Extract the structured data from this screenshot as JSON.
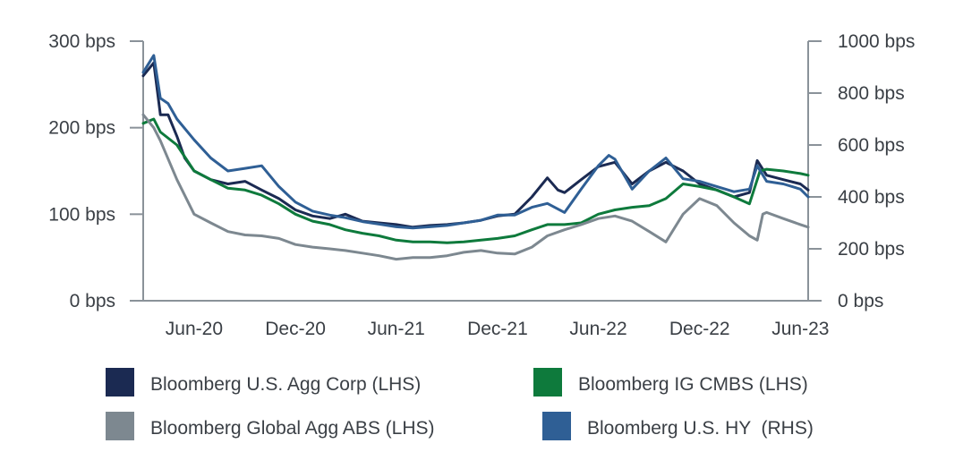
{
  "chart_data": {
    "type": "line",
    "title": "",
    "xlabel": "",
    "ylabel_left": "",
    "ylabel_right": "",
    "x_domain": [
      "2020-03-01",
      "2023-06-15"
    ],
    "x_ticks": [
      {
        "date": "2020-06-01",
        "label": "Jun-20"
      },
      {
        "date": "2020-12-01",
        "label": "Dec-20"
      },
      {
        "date": "2021-06-01",
        "label": "Jun-21"
      },
      {
        "date": "2021-12-01",
        "label": "Dec-21"
      },
      {
        "date": "2022-06-01",
        "label": "Jun-22"
      },
      {
        "date": "2022-12-01",
        "label": "Dec-22"
      },
      {
        "date": "2023-06-01",
        "label": "Jun-23"
      }
    ],
    "y_left": {
      "range": [
        0,
        300
      ],
      "ticks": [
        0,
        100,
        200,
        300
      ],
      "tick_labels": [
        "0 bps",
        "100 bps",
        "200 bps",
        "300 bps"
      ]
    },
    "y_right": {
      "range": [
        0,
        1000
      ],
      "ticks": [
        0,
        200,
        400,
        600,
        800,
        1000
      ],
      "tick_labels": [
        "0 bps",
        "200 bps",
        "400 bps",
        "600 bps",
        "800 bps",
        "1000 bps"
      ]
    },
    "grid": false,
    "legend_position": "bottom",
    "series": [
      {
        "name": "Bloomberg U.S. Agg Corp (LHS)",
        "axis": "left",
        "color": "#1b2a52",
        "points": [
          [
            "2020-03-01",
            260
          ],
          [
            "2020-03-20",
            275
          ],
          [
            "2020-04-01",
            215
          ],
          [
            "2020-04-15",
            215
          ],
          [
            "2020-05-01",
            190
          ],
          [
            "2020-05-15",
            165
          ],
          [
            "2020-06-01",
            150
          ],
          [
            "2020-07-01",
            140
          ],
          [
            "2020-08-01",
            135
          ],
          [
            "2020-09-01",
            138
          ],
          [
            "2020-10-01",
            128
          ],
          [
            "2020-11-01",
            118
          ],
          [
            "2020-12-01",
            105
          ],
          [
            "2021-01-01",
            98
          ],
          [
            "2021-02-01",
            95
          ],
          [
            "2021-03-01",
            100
          ],
          [
            "2021-04-01",
            92
          ],
          [
            "2021-05-01",
            90
          ],
          [
            "2021-06-01",
            88
          ],
          [
            "2021-07-01",
            85
          ],
          [
            "2021-08-01",
            87
          ],
          [
            "2021-09-01",
            88
          ],
          [
            "2021-10-01",
            90
          ],
          [
            "2021-11-01",
            93
          ],
          [
            "2021-12-01",
            98
          ],
          [
            "2022-01-01",
            100
          ],
          [
            "2022-02-01",
            120
          ],
          [
            "2022-03-01",
            142
          ],
          [
            "2022-03-20",
            128
          ],
          [
            "2022-04-01",
            125
          ],
          [
            "2022-05-01",
            140
          ],
          [
            "2022-06-01",
            155
          ],
          [
            "2022-07-01",
            160
          ],
          [
            "2022-08-01",
            135
          ],
          [
            "2022-09-01",
            150
          ],
          [
            "2022-10-01",
            160
          ],
          [
            "2022-11-01",
            150
          ],
          [
            "2022-12-01",
            135
          ],
          [
            "2023-01-01",
            128
          ],
          [
            "2023-02-01",
            120
          ],
          [
            "2023-03-01",
            125
          ],
          [
            "2023-03-15",
            162
          ],
          [
            "2023-04-01",
            145
          ],
          [
            "2023-05-01",
            140
          ],
          [
            "2023-06-01",
            135
          ],
          [
            "2023-06-15",
            128
          ]
        ]
      },
      {
        "name": "Bloomberg IG CMBS (LHS)",
        "axis": "left",
        "color": "#0e7a3c",
        "points": [
          [
            "2020-03-01",
            205
          ],
          [
            "2020-03-20",
            210
          ],
          [
            "2020-04-01",
            195
          ],
          [
            "2020-05-01",
            180
          ],
          [
            "2020-06-01",
            150
          ],
          [
            "2020-07-01",
            140
          ],
          [
            "2020-08-01",
            130
          ],
          [
            "2020-09-01",
            128
          ],
          [
            "2020-10-01",
            122
          ],
          [
            "2020-11-01",
            112
          ],
          [
            "2020-12-01",
            100
          ],
          [
            "2021-01-01",
            92
          ],
          [
            "2021-02-01",
            88
          ],
          [
            "2021-03-01",
            82
          ],
          [
            "2021-04-01",
            78
          ],
          [
            "2021-05-01",
            75
          ],
          [
            "2021-06-01",
            70
          ],
          [
            "2021-07-01",
            68
          ],
          [
            "2021-08-01",
            68
          ],
          [
            "2021-09-01",
            67
          ],
          [
            "2021-10-01",
            68
          ],
          [
            "2021-11-01",
            70
          ],
          [
            "2021-12-01",
            72
          ],
          [
            "2022-01-01",
            75
          ],
          [
            "2022-02-01",
            82
          ],
          [
            "2022-03-01",
            88
          ],
          [
            "2022-04-01",
            88
          ],
          [
            "2022-05-01",
            90
          ],
          [
            "2022-06-01",
            100
          ],
          [
            "2022-07-01",
            105
          ],
          [
            "2022-08-01",
            108
          ],
          [
            "2022-09-01",
            110
          ],
          [
            "2022-10-01",
            118
          ],
          [
            "2022-11-01",
            135
          ],
          [
            "2022-12-01",
            132
          ],
          [
            "2023-01-01",
            128
          ],
          [
            "2023-02-01",
            120
          ],
          [
            "2023-03-01",
            112
          ],
          [
            "2023-03-20",
            150
          ],
          [
            "2023-04-01",
            152
          ],
          [
            "2023-05-01",
            150
          ],
          [
            "2023-06-01",
            147
          ],
          [
            "2023-06-15",
            145
          ]
        ]
      },
      {
        "name": "Bloomberg Global Agg ABS (LHS)",
        "axis": "left",
        "color": "#7d8890",
        "points": [
          [
            "2020-03-01",
            215
          ],
          [
            "2020-03-20",
            200
          ],
          [
            "2020-04-01",
            185
          ],
          [
            "2020-05-01",
            140
          ],
          [
            "2020-06-01",
            100
          ],
          [
            "2020-07-01",
            90
          ],
          [
            "2020-08-01",
            80
          ],
          [
            "2020-09-01",
            76
          ],
          [
            "2020-10-01",
            75
          ],
          [
            "2020-11-01",
            72
          ],
          [
            "2020-12-01",
            65
          ],
          [
            "2021-01-01",
            62
          ],
          [
            "2021-02-01",
            60
          ],
          [
            "2021-03-01",
            58
          ],
          [
            "2021-04-01",
            55
          ],
          [
            "2021-05-01",
            52
          ],
          [
            "2021-06-01",
            48
          ],
          [
            "2021-07-01",
            50
          ],
          [
            "2021-08-01",
            50
          ],
          [
            "2021-09-01",
            52
          ],
          [
            "2021-10-01",
            56
          ],
          [
            "2021-11-01",
            58
          ],
          [
            "2021-12-01",
            55
          ],
          [
            "2022-01-01",
            54
          ],
          [
            "2022-02-01",
            62
          ],
          [
            "2022-03-01",
            75
          ],
          [
            "2022-04-01",
            82
          ],
          [
            "2022-05-01",
            88
          ],
          [
            "2022-06-01",
            95
          ],
          [
            "2022-07-01",
            98
          ],
          [
            "2022-08-01",
            92
          ],
          [
            "2022-09-01",
            80
          ],
          [
            "2022-10-01",
            68
          ],
          [
            "2022-11-01",
            100
          ],
          [
            "2022-12-01",
            118
          ],
          [
            "2023-01-01",
            110
          ],
          [
            "2023-02-01",
            90
          ],
          [
            "2023-03-01",
            75
          ],
          [
            "2023-03-15",
            70
          ],
          [
            "2023-03-25",
            100
          ],
          [
            "2023-04-01",
            102
          ],
          [
            "2023-05-01",
            95
          ],
          [
            "2023-06-01",
            88
          ],
          [
            "2023-06-15",
            85
          ]
        ]
      },
      {
        "name": "Bloomberg U.S. HY  (RHS)",
        "axis": "right",
        "color": "#2f5f95",
        "points": [
          [
            "2020-03-01",
            880
          ],
          [
            "2020-03-20",
            945
          ],
          [
            "2020-04-01",
            780
          ],
          [
            "2020-04-15",
            760
          ],
          [
            "2020-05-01",
            700
          ],
          [
            "2020-06-01",
            620
          ],
          [
            "2020-07-01",
            550
          ],
          [
            "2020-08-01",
            500
          ],
          [
            "2020-09-01",
            510
          ],
          [
            "2020-10-01",
            520
          ],
          [
            "2020-11-01",
            440
          ],
          [
            "2020-12-01",
            380
          ],
          [
            "2021-01-01",
            345
          ],
          [
            "2021-02-01",
            330
          ],
          [
            "2021-03-01",
            320
          ],
          [
            "2021-04-01",
            305
          ],
          [
            "2021-05-01",
            295
          ],
          [
            "2021-06-01",
            285
          ],
          [
            "2021-07-01",
            280
          ],
          [
            "2021-08-01",
            285
          ],
          [
            "2021-09-01",
            290
          ],
          [
            "2021-10-01",
            300
          ],
          [
            "2021-11-01",
            310
          ],
          [
            "2021-12-01",
            330
          ],
          [
            "2022-01-01",
            330
          ],
          [
            "2022-02-01",
            360
          ],
          [
            "2022-03-01",
            375
          ],
          [
            "2022-04-01",
            340
          ],
          [
            "2022-05-01",
            430
          ],
          [
            "2022-06-01",
            520
          ],
          [
            "2022-06-20",
            560
          ],
          [
            "2022-07-01",
            545
          ],
          [
            "2022-08-01",
            430
          ],
          [
            "2022-09-01",
            500
          ],
          [
            "2022-10-01",
            550
          ],
          [
            "2022-11-01",
            470
          ],
          [
            "2022-12-01",
            460
          ],
          [
            "2023-01-01",
            440
          ],
          [
            "2023-02-01",
            420
          ],
          [
            "2023-03-01",
            430
          ],
          [
            "2023-03-15",
            520
          ],
          [
            "2023-04-01",
            460
          ],
          [
            "2023-05-01",
            450
          ],
          [
            "2023-06-01",
            430
          ],
          [
            "2023-06-15",
            400
          ]
        ]
      }
    ]
  },
  "legend": {
    "items": [
      {
        "label": "Bloomberg U.S. Agg Corp (LHS)",
        "color": "#1b2a52"
      },
      {
        "label": "Bloomberg IG CMBS (LHS)",
        "color": "#0e7a3c"
      },
      {
        "label": "Bloomberg Global Agg ABS (LHS)",
        "color": "#7d8890"
      },
      {
        "label": "Bloomberg U.S. HY  (RHS)",
        "color": "#2f5f95"
      }
    ]
  }
}
